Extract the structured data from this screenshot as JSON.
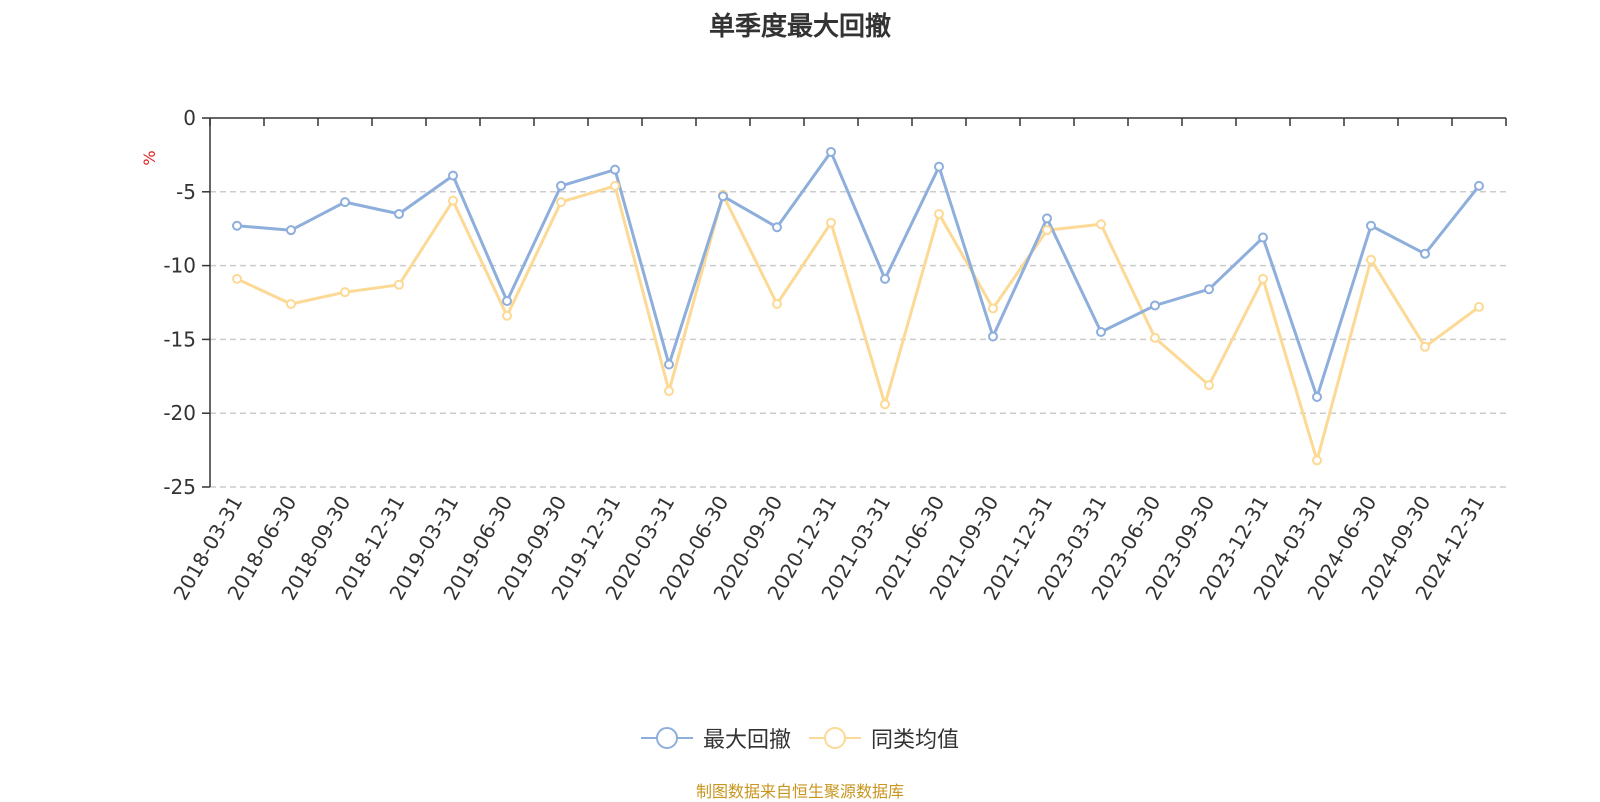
{
  "title": "单季度最大回撤",
  "footer": "制图数据来自恒生聚源数据库",
  "chart_data": {
    "type": "line",
    "title": "单季度最大回撤",
    "ylabel": "%",
    "ylim": [
      -25,
      0
    ],
    "yticks": [
      0,
      -5,
      -10,
      -15,
      -20,
      -25
    ],
    "grid": true,
    "legend_position": "bottom",
    "categories": [
      "2018-03-31",
      "2018-06-30",
      "2018-09-30",
      "2018-12-31",
      "2019-03-31",
      "2019-06-30",
      "2019-09-30",
      "2019-12-31",
      "2020-03-31",
      "2020-06-30",
      "2020-09-30",
      "2020-12-31",
      "2021-03-31",
      "2021-06-30",
      "2021-09-30",
      "2021-12-31",
      "2023-03-31",
      "2023-06-30",
      "2023-09-30",
      "2023-12-31",
      "2024-03-31",
      "2024-06-30",
      "2024-09-30",
      "2024-12-31"
    ],
    "series": [
      {
        "name": "最大回撤",
        "color": "#8eaedb",
        "values": [
          -7.3,
          -7.6,
          -5.7,
          -6.5,
          -3.9,
          -12.4,
          -4.6,
          -3.5,
          -16.7,
          -5.3,
          -7.4,
          -2.3,
          -10.9,
          -3.3,
          -14.8,
          -6.8,
          -14.5,
          -12.7,
          -11.6,
          -8.1,
          -18.9,
          -7.3,
          -9.2,
          -4.6
        ]
      },
      {
        "name": "同类均值",
        "color": "#fcd995",
        "values": [
          -10.9,
          -12.6,
          -11.8,
          -11.3,
          -5.6,
          -13.4,
          -5.7,
          -4.6,
          -18.5,
          -5.2,
          -12.6,
          -7.1,
          -19.4,
          -6.5,
          -12.9,
          -7.6,
          -7.2,
          -14.9,
          -18.1,
          -10.9,
          -23.2,
          -9.6,
          -15.5,
          -12.8
        ]
      }
    ]
  }
}
